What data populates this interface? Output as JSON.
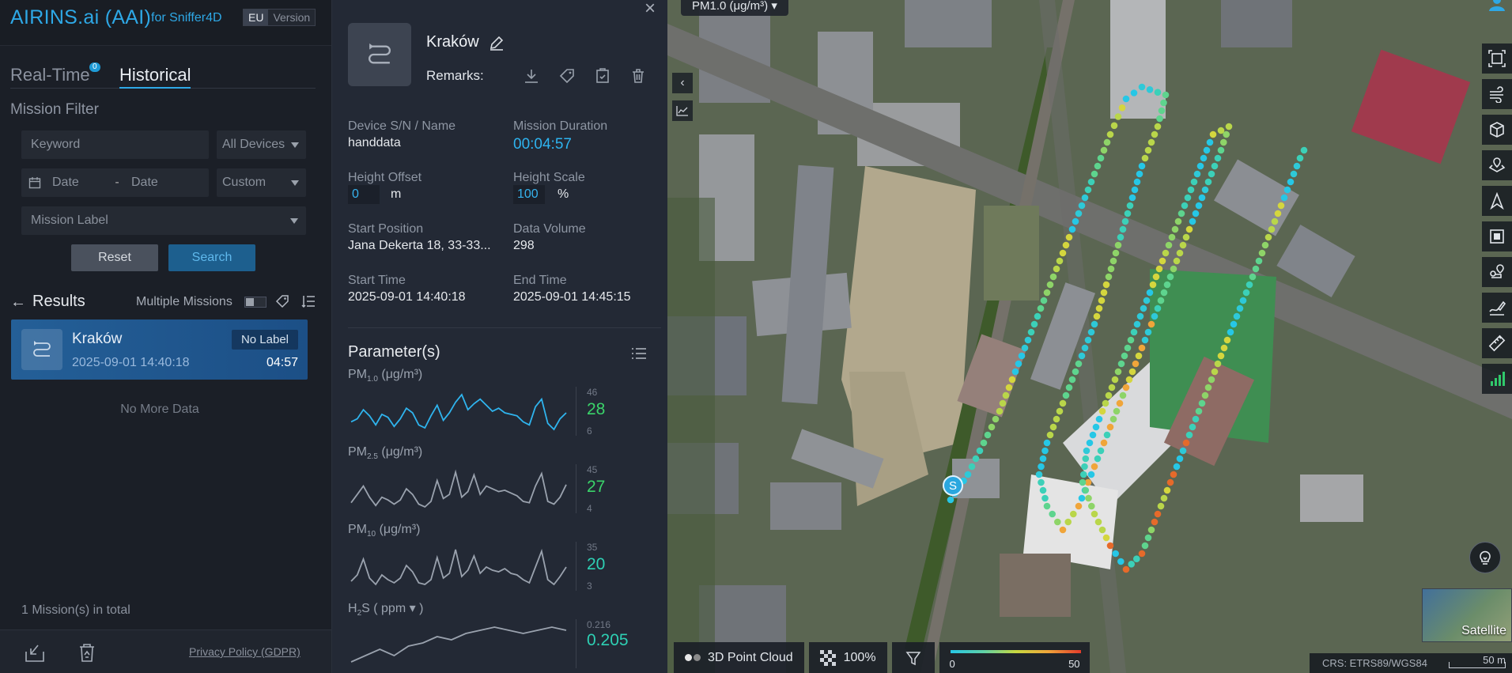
{
  "brand": {
    "title": "AIRINS.ai (AAI)",
    "subtitle": "for Sniffer4D",
    "region": "EU",
    "version": "Version"
  },
  "tabs": {
    "realtime": "Real-Time",
    "realtime_badge": "0",
    "historical": "Historical"
  },
  "filter": {
    "title": "Mission Filter",
    "keyword_placeholder": "Keyword",
    "devices": "All Devices",
    "date_from": "Date",
    "date_sep": "-",
    "date_to": "Date",
    "range": "Custom",
    "label": "Mission Label",
    "reset": "Reset",
    "search": "Search"
  },
  "results": {
    "title": "Results",
    "multiple": "Multiple Missions",
    "no_more": "No More Data",
    "total": "1 Mission(s) in total",
    "items": [
      {
        "name": "Kraków",
        "label": "No Label",
        "datetime": "2025-09-01 14:40:18",
        "duration": "04:57"
      }
    ]
  },
  "footer": {
    "privacy": "Privacy Policy (GDPR)"
  },
  "detail": {
    "name": "Kraków",
    "remarks": "Remarks:",
    "device_k": "Device S/N / Name",
    "device_v": "handdata",
    "duration_k": "Mission Duration",
    "duration_v": "00:04:57",
    "height_off_k": "Height Offset",
    "height_off_v": "0",
    "height_off_u": "m",
    "height_scale_k": "Height Scale",
    "height_scale_v": "100",
    "height_scale_u": "%",
    "start_pos_k": "Start Position",
    "start_pos_v": "Jana Dekerta 18, 33-33...",
    "volume_k": "Data Volume",
    "volume_v": "298",
    "start_k": "Start Time",
    "start_v": "2025-09-01 14:40:18",
    "end_k": "End Time",
    "end_v": "2025-09-01 14:45:15",
    "params_title": "Parameter(s)"
  },
  "params": [
    {
      "base": "PM",
      "sub": "1.0",
      "unit": "(μg/m³)",
      "max": "46",
      "value": "28",
      "min": "6",
      "color": "#3ad46a",
      "line": "#2fb4ee",
      "series": [
        22,
        24,
        30,
        26,
        20,
        27,
        25,
        19,
        24,
        31,
        28,
        20,
        18,
        26,
        33,
        23,
        28,
        35,
        40,
        30,
        34,
        37,
        33,
        29,
        31,
        28,
        27,
        26,
        22,
        20,
        32,
        37,
        21,
        17,
        24,
        28
      ]
    },
    {
      "base": "PM",
      "sub": "2.5",
      "unit": "(μg/m³)",
      "max": "45",
      "value": "27",
      "min": "4",
      "color": "#3ad46a",
      "line": "#9aa2ae",
      "series": [
        14,
        20,
        26,
        18,
        12,
        18,
        16,
        13,
        16,
        24,
        20,
        13,
        11,
        15,
        30,
        17,
        20,
        36,
        18,
        22,
        34,
        20,
        26,
        24,
        22,
        23,
        21,
        19,
        15,
        14,
        26,
        35,
        15,
        13,
        18,
        27
      ]
    },
    {
      "base": "PM",
      "sub": "10",
      "unit": "(μg/m³)",
      "max": "35",
      "value": "20",
      "min": "3",
      "color": "#2ed0b4",
      "line": "#9aa2ae",
      "series": [
        11,
        15,
        25,
        13,
        9,
        15,
        12,
        10,
        13,
        21,
        17,
        10,
        9,
        12,
        26,
        13,
        16,
        31,
        14,
        18,
        27,
        16,
        20,
        18,
        17,
        19,
        16,
        15,
        12,
        10,
        20,
        30,
        12,
        9,
        14,
        20
      ]
    },
    {
      "base": "H",
      "sub": "2",
      "base2": "S",
      "unit": "( ppm ▾ )",
      "max": "0.216",
      "value": "0.205",
      "min": "",
      "color": "#2ed0b4",
      "line": "#9aa2ae",
      "series": [
        0.1,
        0.12,
        0.14,
        0.12,
        0.15,
        0.16,
        0.18,
        0.17,
        0.19,
        0.2,
        0.21,
        0.2,
        0.19,
        0.2,
        0.21,
        0.2
      ]
    }
  ],
  "map": {
    "parameter": "PM1.0 (μg/m³)",
    "bottom": {
      "pointcloud": "3D Point Cloud",
      "opacity": "100%",
      "legend_min": "0",
      "legend_max": "50"
    },
    "satellite": "Satellite",
    "crs": "CRS: ETRS89/WGS84",
    "scale": "50 m",
    "start_marker": "S"
  }
}
